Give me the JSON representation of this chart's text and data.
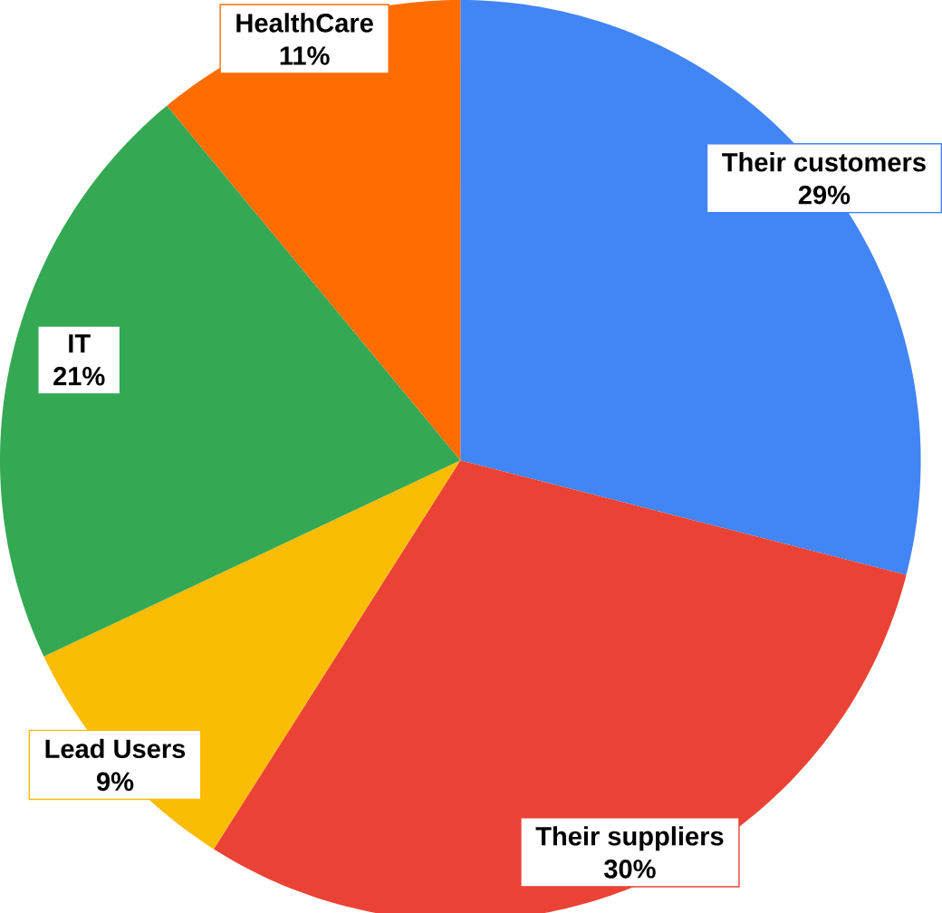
{
  "chart_data": {
    "type": "pie",
    "categories": [
      "Their customers",
      "Their suppliers",
      "Lead Users",
      "IT",
      "HealthCare"
    ],
    "values": [
      29,
      30,
      9,
      21,
      11
    ],
    "value_labels": [
      "29%",
      "30%",
      "9%",
      "21%",
      "11%"
    ],
    "colors": [
      "#4285f4",
      "#ea4335",
      "#fbbc04",
      "#34a853",
      "#ff6d01"
    ]
  }
}
